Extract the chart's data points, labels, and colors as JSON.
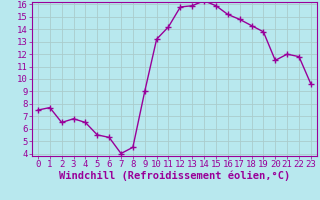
{
  "x": [
    0,
    1,
    2,
    3,
    4,
    5,
    6,
    7,
    8,
    9,
    10,
    11,
    12,
    13,
    14,
    15,
    16,
    17,
    18,
    19,
    20,
    21,
    22,
    23
  ],
  "y": [
    7.5,
    7.7,
    6.5,
    6.8,
    6.5,
    5.5,
    5.3,
    4.0,
    4.5,
    9.0,
    13.2,
    14.2,
    15.8,
    15.9,
    16.3,
    15.9,
    15.2,
    14.8,
    14.3,
    13.8,
    11.5,
    12.0,
    11.8,
    9.6
  ],
  "line_color": "#990099",
  "marker": "+",
  "marker_size": 4,
  "marker_linewidth": 1.0,
  "bg_color": "#b8e8ee",
  "grid_color": "#aacccc",
  "xlabel": "Windchill (Refroidissement éolien,°C)",
  "xlabel_fontsize": 7.5,
  "tick_fontsize": 6.5,
  "ylim_min": 4,
  "ylim_max": 16,
  "xlim_min": 0,
  "xlim_max": 23,
  "yticks": [
    4,
    5,
    6,
    7,
    8,
    9,
    10,
    11,
    12,
    13,
    14,
    15,
    16
  ],
  "xticks": [
    0,
    1,
    2,
    3,
    4,
    5,
    6,
    7,
    8,
    9,
    10,
    11,
    12,
    13,
    14,
    15,
    16,
    17,
    18,
    19,
    20,
    21,
    22,
    23
  ],
  "linewidth": 1.0
}
